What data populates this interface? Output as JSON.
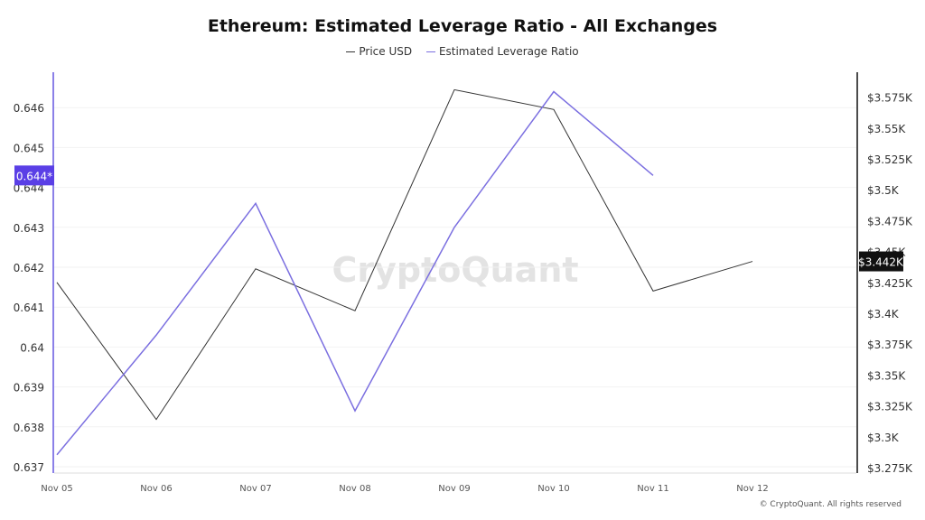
{
  "chart_data": {
    "type": "line",
    "title": "Ethereum: Estimated Leverage Ratio - All Exchanges",
    "categories": [
      "Nov 05",
      "Nov 06",
      "Nov 07",
      "Nov 08",
      "Nov 09",
      "Nov 10",
      "Nov 11",
      "Nov 12"
    ],
    "series": [
      {
        "name": "Price USD",
        "axis": "right",
        "color": "#333333",
        "values": [
          3425,
          3314,
          3436,
          3402,
          3581,
          3565,
          3418,
          3442
        ]
      },
      {
        "name": "Estimated Leverage Ratio",
        "axis": "left",
        "color": "#7b6fe0",
        "values": [
          0.6373,
          0.6403,
          0.6436,
          0.6384,
          0.643,
          0.6464,
          0.6443,
          null
        ]
      }
    ],
    "left_axis": {
      "range": [
        0.637,
        0.6468
      ],
      "ticks": [
        "0.637",
        "0.638",
        "0.639",
        "0.64",
        "0.641",
        "0.642",
        "0.643",
        "0.644",
        "0.645",
        "0.646"
      ],
      "current_label": "0.644*",
      "current_value": 0.6443,
      "color": "#5a3fe6"
    },
    "right_axis": {
      "range": [
        3275,
        3583
      ],
      "ticks": [
        "$3.275K",
        "$3.3K",
        "$3.325K",
        "$3.35K",
        "$3.375K",
        "$3.4K",
        "$3.425K",
        "$3.45K",
        "$3.475K",
        "$3.5K",
        "$3.525K",
        "$3.55K",
        "$3.575K"
      ],
      "current_label": "$3.442K",
      "current_value": 3442
    },
    "grid": true,
    "legend": "top-center",
    "watermark": "CryptoQuant"
  },
  "footer": "© CryptoQuant. All rights reserved"
}
